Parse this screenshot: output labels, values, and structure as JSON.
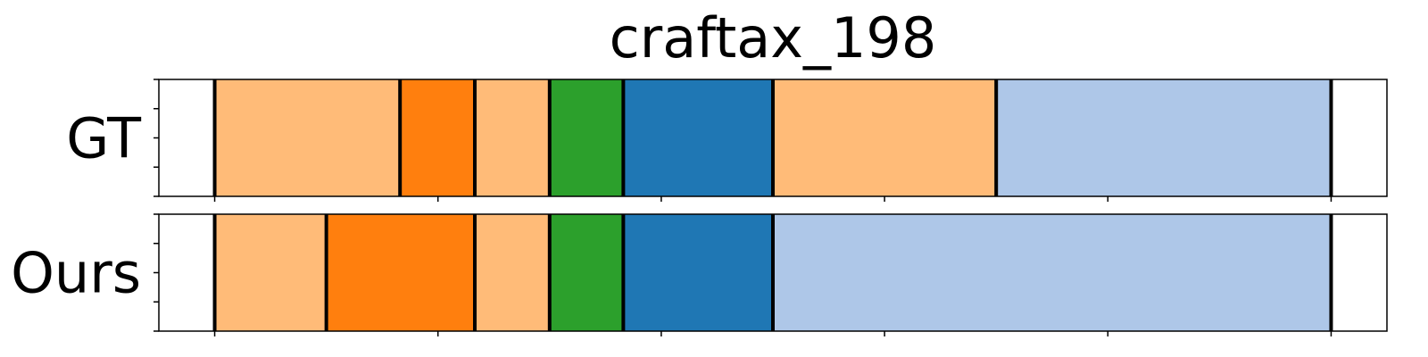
{
  "chart_data": {
    "type": "bar",
    "orientation": "horizontal-segments",
    "title": "craftax_198",
    "x_range": [
      0,
      1
    ],
    "colors": {
      "light_orange": "#ffbb78",
      "orange": "#ff7f0e",
      "green": "#2ca02c",
      "blue": "#1f77b4",
      "light_blue": "#aec7e8"
    },
    "rows": [
      {
        "label": "GT",
        "segments": [
          {
            "start": 0.05,
            "end": 0.216,
            "color": "#ffbb78"
          },
          {
            "start": 0.216,
            "end": 0.283,
            "color": "#ff7f0e"
          },
          {
            "start": 0.283,
            "end": 0.35,
            "color": "#ffbb78"
          },
          {
            "start": 0.35,
            "end": 0.416,
            "color": "#2ca02c"
          },
          {
            "start": 0.416,
            "end": 0.55,
            "color": "#1f77b4"
          },
          {
            "start": 0.55,
            "end": 0.75,
            "color": "#ffbb78"
          },
          {
            "start": 0.75,
            "end": 1.05,
            "color": "#aec7e8"
          }
        ]
      },
      {
        "label": "Ours",
        "segments": [
          {
            "start": 0.05,
            "end": 0.15,
            "color": "#ffbb78"
          },
          {
            "start": 0.15,
            "end": 0.283,
            "color": "#ff7f0e"
          },
          {
            "start": 0.283,
            "end": 0.35,
            "color": "#ffbb78"
          },
          {
            "start": 0.35,
            "end": 0.416,
            "color": "#2ca02c"
          },
          {
            "start": 0.416,
            "end": 0.55,
            "color": "#1f77b4"
          },
          {
            "start": 0.55,
            "end": 1.05,
            "color": "#aec7e8"
          }
        ]
      }
    ],
    "x_ticks": [
      0.05,
      0.25,
      0.45,
      0.65,
      0.85,
      1.05
    ],
    "x_min": 0.0,
    "x_max": 1.1,
    "grid": false,
    "legend": "none"
  }
}
